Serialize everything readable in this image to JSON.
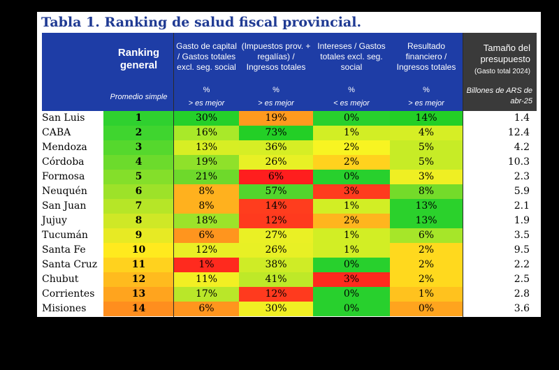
{
  "title": "Tabla 1. Ranking de salud fiscal provincial.",
  "headers": {
    "ranking": {
      "main": "Ranking general",
      "note": "Promedio simple"
    },
    "capital": {
      "main": "Gasto de capital / Gastos totales excl. seg. social",
      "unit": "%",
      "note": "> es mejor"
    },
    "impuestos": {
      "main": "(Impuestos prov. + regalías) / Ingresos totales",
      "unit": "%",
      "note": "> es mejor"
    },
    "intereses": {
      "main": "Intereses / Gastos totales excl. seg. social",
      "unit": "%",
      "note": "< es mejor"
    },
    "resultado": {
      "main": "Resultado financiero / Ingresos totales",
      "unit": "%",
      "note": "> es mejor"
    },
    "tamano": {
      "main": "Tamaño del presupuesto",
      "sub": "(Gasto total 2024)",
      "note": "Billones de ARS de abr-25"
    }
  },
  "rows": [
    {
      "name": "San Luis",
      "rank": "1",
      "capital": "30%",
      "impuestos": "19%",
      "intereses": "0%",
      "resultado": "14%",
      "size": "1.4"
    },
    {
      "name": "CABA",
      "rank": "2",
      "capital": "16%",
      "impuestos": "73%",
      "intereses": "1%",
      "resultado": "4%",
      "size": "12.4"
    },
    {
      "name": "Mendoza",
      "rank": "3",
      "capital": "13%",
      "impuestos": "36%",
      "intereses": "2%",
      "resultado": "5%",
      "size": "4.2"
    },
    {
      "name": "Córdoba",
      "rank": "4",
      "capital": "19%",
      "impuestos": "26%",
      "intereses": "2%",
      "resultado": "5%",
      "size": "10.3"
    },
    {
      "name": "Formosa",
      "rank": "5",
      "capital": "21%",
      "impuestos": "6%",
      "intereses": "0%",
      "resultado": "3%",
      "size": "2.3"
    },
    {
      "name": "Neuquén",
      "rank": "6",
      "capital": "8%",
      "impuestos": "57%",
      "intereses": "3%",
      "resultado": "8%",
      "size": "5.9"
    },
    {
      "name": "San Juan",
      "rank": "7",
      "capital": "8%",
      "impuestos": "14%",
      "intereses": "1%",
      "resultado": "13%",
      "size": "2.1"
    },
    {
      "name": "Jujuy",
      "rank": "8",
      "capital": "18%",
      "impuestos": "12%",
      "intereses": "2%",
      "resultado": "13%",
      "size": "1.9"
    },
    {
      "name": "Tucumán",
      "rank": "9",
      "capital": "6%",
      "impuestos": "27%",
      "intereses": "1%",
      "resultado": "6%",
      "size": "3.5"
    },
    {
      "name": "Santa Fe",
      "rank": "10",
      "capital": "12%",
      "impuestos": "26%",
      "intereses": "1%",
      "resultado": "2%",
      "size": "9.5"
    },
    {
      "name": "Santa Cruz",
      "rank": "11",
      "capital": "1%",
      "impuestos": "38%",
      "intereses": "0%",
      "resultado": "2%",
      "size": "2.2"
    },
    {
      "name": "Chubut",
      "rank": "12",
      "capital": "11%",
      "impuestos": "41%",
      "intereses": "3%",
      "resultado": "2%",
      "size": "2.5"
    },
    {
      "name": "Corrientes",
      "rank": "13",
      "capital": "17%",
      "impuestos": "12%",
      "intereses": "0%",
      "resultado": "1%",
      "size": "2.8"
    },
    {
      "name": "Misiones",
      "rank": "14",
      "capital": "6%",
      "impuestos": "30%",
      "intereses": "0%",
      "resultado": "0%",
      "size": "3.6"
    }
  ],
  "colors": {
    "rank": [
      "#2fd12f",
      "#3fd52f",
      "#55d82d",
      "#6cdb2c",
      "#84df2a",
      "#9de229",
      "#b6e627",
      "#cfe826",
      "#e7ea24",
      "#ffea1e",
      "#ffd21e",
      "#ffbb1e",
      "#ffa41e",
      "#ff8e1e"
    ],
    "capital": [
      "#25d02a",
      "#a9e929",
      "#d7ee24",
      "#8fe12a",
      "#6ed92b",
      "#ffb11e",
      "#ffb11e",
      "#9ce32a",
      "#ff951e",
      "#e9ef25",
      "#ff2a1e",
      "#f2ef23",
      "#b9e729",
      "#ff951e"
    ],
    "impuestos": [
      "#ff9a1e",
      "#23cf26",
      "#d6ee25",
      "#e8f025",
      "#ff1e1e",
      "#52d52d",
      "#ff3d1e",
      "#ff3a1e",
      "#eaf025",
      "#e8f025",
      "#cfec26",
      "#bee928",
      "#ff3a1e",
      "#f0ef23"
    ],
    "intereses": [
      "#28d02d",
      "#d2ee25",
      "#f8f422",
      "#ffd21e",
      "#28d02d",
      "#ff3b1e",
      "#d2ee25",
      "#ffb51e",
      "#d2ee25",
      "#d2ee25",
      "#28d02d",
      "#ff2a1e",
      "#28d02d",
      "#28d02d"
    ],
    "resultado": [
      "#23cf26",
      "#d6ee25",
      "#c7ec26",
      "#c7ec26",
      "#efef23",
      "#74db2a",
      "#2bd12c",
      "#2bd12c",
      "#a6e629",
      "#ffd91e",
      "#ffd91e",
      "#ffd91e",
      "#ffc21e",
      "#ffa41e"
    ]
  }
}
